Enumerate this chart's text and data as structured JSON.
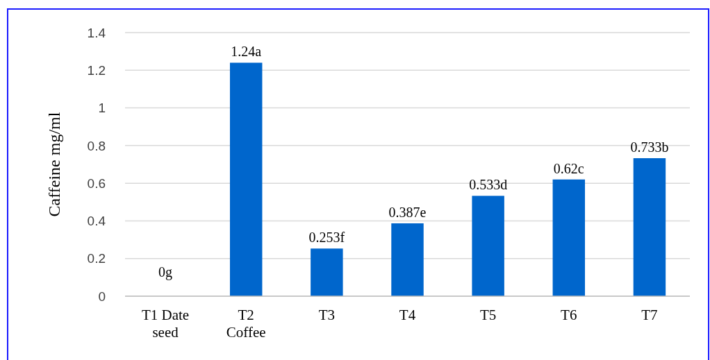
{
  "chart_data": {
    "type": "bar",
    "ylabel": "Caffeine mg/ml",
    "categories": [
      "T1 Date\nseed",
      "T2\nCoffee",
      "T3",
      "T4",
      "T5",
      "T6",
      "T7"
    ],
    "values": [
      0,
      1.24,
      0.253,
      0.387,
      0.533,
      0.62,
      0.733
    ],
    "value_labels": [
      "0g",
      "1.24a",
      "0.253f",
      "0.387e",
      "0.533d",
      "0.62c",
      "0.733b"
    ],
    "color": "#0066cc",
    "ylim": [
      0,
      1.4
    ],
    "yticks": [
      0,
      0.2,
      0.4,
      0.6,
      0.8,
      1,
      1.2,
      1.4
    ],
    "grid": "y"
  }
}
